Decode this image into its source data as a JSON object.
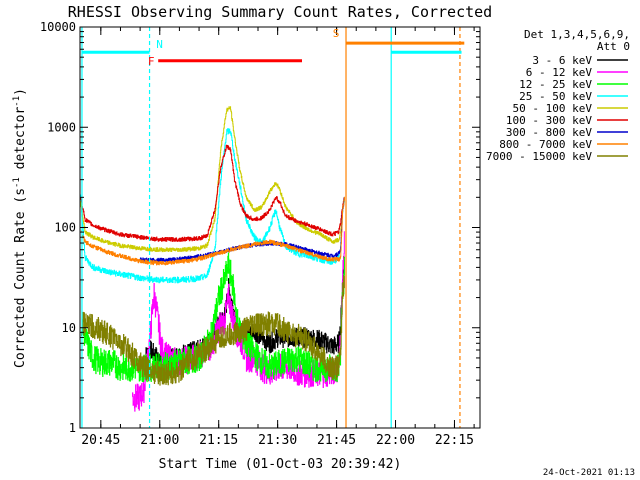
{
  "chart_data": {
    "type": "line",
    "title": "RHESSI Observing Summary Count Rates, Corrected",
    "xlabel": "Start Time (01-Oct-03 20:39:42)",
    "ylabel_main": "Corrected Count Rate (s",
    "ylabel_sup1": "-1",
    "ylabel_mid": " detector",
    "ylabel_sup2": "-1",
    "ylabel_end": ")",
    "yscale": "log",
    "ylim": [
      1,
      10000
    ],
    "xlim_min": [
      39.7,
      141.5
    ],
    "y_ticks": [
      {
        "v": 1,
        "label": "1"
      },
      {
        "v": 10,
        "label": "10"
      },
      {
        "v": 100,
        "label": "100"
      },
      {
        "v": 1000,
        "label": "1000"
      },
      {
        "v": 10000,
        "label": "10000"
      }
    ],
    "x_ticks": [
      {
        "v": 45,
        "label": "20:45"
      },
      {
        "v": 60,
        "label": "21:00"
      },
      {
        "v": 75,
        "label": "21:15"
      },
      {
        "v": 90,
        "label": "21:30"
      },
      {
        "v": 105,
        "label": "21:45"
      },
      {
        "v": 120,
        "label": "22:00"
      },
      {
        "v": 135,
        "label": "22:15"
      }
    ],
    "legend": {
      "header1": "Det 1,3,4,5,6,9,",
      "header2": "Att 0",
      "placement": "right"
    },
    "series": [
      {
        "name": "3 - 6 keV",
        "color": "#000000",
        "points": [
          [
            56,
            5
          ],
          [
            57.5,
            6
          ],
          [
            59.5,
            5
          ],
          [
            62,
            5
          ],
          [
            66,
            5.5
          ],
          [
            70,
            6
          ],
          [
            73,
            7.5
          ],
          [
            75,
            11
          ],
          [
            76.5,
            13
          ],
          [
            77.5,
            25
          ],
          [
            78.5,
            17
          ],
          [
            80,
            9
          ],
          [
            82,
            8.5
          ],
          [
            84,
            9.5
          ],
          [
            86,
            8
          ],
          [
            88,
            7
          ],
          [
            90,
            8
          ],
          [
            94,
            8
          ],
          [
            98,
            8
          ],
          [
            101,
            7.5
          ],
          [
            104,
            6.5
          ],
          [
            105.5,
            7
          ],
          [
            106,
            10
          ],
          [
            106.5,
            28
          ],
          [
            107,
            60
          ]
        ]
      },
      {
        "name": "6 - 12 keV",
        "color": "#ff00ff",
        "points": [
          [
            53,
            2
          ],
          [
            55,
            2
          ],
          [
            56,
            2.5
          ],
          [
            57.5,
            8
          ],
          [
            58.5,
            22
          ],
          [
            59.5,
            12
          ],
          [
            60.5,
            6
          ],
          [
            62,
            5
          ],
          [
            65,
            4.5
          ],
          [
            68,
            5
          ],
          [
            71,
            5.5
          ],
          [
            73,
            6.5
          ],
          [
            75,
            10
          ],
          [
            76.5,
            12
          ],
          [
            77.5,
            20
          ],
          [
            78.5,
            13
          ],
          [
            80,
            8
          ],
          [
            81,
            7
          ],
          [
            82,
            5
          ],
          [
            84,
            5
          ],
          [
            86,
            4
          ],
          [
            88,
            3.5
          ],
          [
            90,
            4
          ],
          [
            93,
            4
          ],
          [
            96,
            3.5
          ],
          [
            100,
            3.5
          ],
          [
            103,
            3.5
          ],
          [
            105.5,
            4
          ],
          [
            106,
            8
          ],
          [
            106.5,
            30
          ],
          [
            107,
            70
          ]
        ]
      },
      {
        "name": "12 - 25 keV",
        "color": "#00ff00",
        "points": [
          [
            40.5,
            10
          ],
          [
            41.5,
            7
          ],
          [
            43,
            5
          ],
          [
            45,
            4.5
          ],
          [
            48,
            4.5
          ],
          [
            50,
            4
          ],
          [
            52,
            4
          ],
          [
            55,
            4
          ],
          [
            60,
            4
          ],
          [
            65,
            4.5
          ],
          [
            70,
            5
          ],
          [
            73,
            8
          ],
          [
            75,
            20
          ],
          [
            76.5,
            30
          ],
          [
            77.5,
            42
          ],
          [
            78.5,
            28
          ],
          [
            80,
            10
          ],
          [
            82,
            7
          ],
          [
            85,
            5
          ],
          [
            88,
            4
          ],
          [
            91,
            4.5
          ],
          [
            95,
            5
          ],
          [
            99,
            4
          ],
          [
            103,
            4
          ],
          [
            105.5,
            4
          ],
          [
            106,
            6
          ],
          [
            106.5,
            20
          ],
          [
            107,
            40
          ]
        ]
      },
      {
        "name": "25 - 50 keV",
        "color": "#00ffff",
        "points": [
          [
            39.8,
            200
          ],
          [
            41,
            50
          ],
          [
            43,
            40
          ],
          [
            47,
            36
          ],
          [
            52,
            33
          ],
          [
            56,
            31
          ],
          [
            60,
            30
          ],
          [
            65,
            30
          ],
          [
            70,
            31
          ],
          [
            72,
            33
          ],
          [
            74,
            60
          ],
          [
            75.5,
            300
          ],
          [
            77,
            900
          ],
          [
            78,
            920
          ],
          [
            79,
            500
          ],
          [
            80.5,
            250
          ],
          [
            82,
            120
          ],
          [
            84,
            80
          ],
          [
            86,
            70
          ],
          [
            88,
            100
          ],
          [
            89.5,
            150
          ],
          [
            90.5,
            100
          ],
          [
            92,
            65
          ],
          [
            95,
            55
          ],
          [
            98,
            52
          ],
          [
            101,
            48
          ],
          [
            104,
            45
          ],
          [
            105.5,
            50
          ],
          [
            106,
            60
          ],
          [
            106.5,
            150
          ],
          [
            107,
            200
          ]
        ]
      },
      {
        "name": "50 - 100 keV",
        "color": "#cccc00",
        "points": [
          [
            39.8,
            180
          ],
          [
            41,
            90
          ],
          [
            43,
            80
          ],
          [
            46,
            72
          ],
          [
            50,
            66
          ],
          [
            55,
            62
          ],
          [
            60,
            60
          ],
          [
            65,
            60
          ],
          [
            70,
            62
          ],
          [
            72,
            66
          ],
          [
            74,
            120
          ],
          [
            75.5,
            600
          ],
          [
            77,
            1500
          ],
          [
            78,
            1550
          ],
          [
            79,
            800
          ],
          [
            80.5,
            350
          ],
          [
            82,
            200
          ],
          [
            84,
            150
          ],
          [
            86,
            160
          ],
          [
            88,
            230
          ],
          [
            89.5,
            280
          ],
          [
            90.5,
            240
          ],
          [
            92,
            160
          ],
          [
            95,
            110
          ],
          [
            98,
            95
          ],
          [
            101,
            85
          ],
          [
            104,
            72
          ],
          [
            105.5,
            75
          ],
          [
            106,
            90
          ],
          [
            106.5,
            150
          ],
          [
            107,
            200
          ]
        ]
      },
      {
        "name": "100 - 300 keV",
        "color": "#e00000",
        "points": [
          [
            39.8,
            200
          ],
          [
            41,
            120
          ],
          [
            43,
            105
          ],
          [
            46,
            95
          ],
          [
            50,
            85
          ],
          [
            55,
            80
          ],
          [
            60,
            76
          ],
          [
            65,
            76
          ],
          [
            70,
            78
          ],
          [
            72,
            82
          ],
          [
            74,
            150
          ],
          [
            75.5,
            400
          ],
          [
            77,
            650
          ],
          [
            78,
            600
          ],
          [
            79,
            300
          ],
          [
            80.5,
            170
          ],
          [
            82,
            130
          ],
          [
            84,
            120
          ],
          [
            86,
            125
          ],
          [
            88,
            150
          ],
          [
            89.5,
            200
          ],
          [
            90.5,
            180
          ],
          [
            92,
            130
          ],
          [
            95,
            115
          ],
          [
            98,
            105
          ],
          [
            101,
            95
          ],
          [
            104,
            85
          ],
          [
            105.5,
            90
          ],
          [
            106,
            110
          ],
          [
            106.5,
            160
          ],
          [
            107,
            200
          ]
        ]
      },
      {
        "name": "300 - 800 keV",
        "color": "#0000cc",
        "points": [
          [
            55,
            48
          ],
          [
            58,
            47
          ],
          [
            60,
            47
          ],
          [
            64,
            48
          ],
          [
            68,
            50
          ],
          [
            72,
            53
          ],
          [
            76,
            58
          ],
          [
            80,
            63
          ],
          [
            84,
            67
          ],
          [
            88,
            70
          ],
          [
            92,
            68
          ],
          [
            96,
            62
          ],
          [
            100,
            56
          ],
          [
            104,
            52
          ],
          [
            105.5,
            55
          ],
          [
            106,
            60
          ],
          [
            106.5,
            150
          ],
          [
            107,
            200
          ]
        ]
      },
      {
        "name": "800 - 7000 keV",
        "color": "#ff8000",
        "points": [
          [
            40,
            90
          ],
          [
            41,
            72
          ],
          [
            43,
            65
          ],
          [
            46,
            58
          ],
          [
            50,
            52
          ],
          [
            55,
            46
          ],
          [
            60,
            44
          ],
          [
            64,
            45
          ],
          [
            68,
            47
          ],
          [
            72,
            51
          ],
          [
            76,
            57
          ],
          [
            80,
            63
          ],
          [
            84,
            68
          ],
          [
            88,
            72
          ],
          [
            92,
            66
          ],
          [
            96,
            58
          ],
          [
            100,
            52
          ],
          [
            103,
            48
          ],
          [
            105.5,
            48
          ],
          [
            106,
            50
          ],
          [
            106.5,
            150
          ],
          [
            107,
            200
          ]
        ]
      },
      {
        "name": "7000 - 15000 keV",
        "color": "#808000",
        "points": [
          [
            40,
            11
          ],
          [
            44,
            10
          ],
          [
            48,
            8
          ],
          [
            52,
            6
          ],
          [
            56,
            4
          ],
          [
            60,
            3.5
          ],
          [
            64,
            3.5
          ],
          [
            67,
            4.5
          ],
          [
            70,
            5.5
          ],
          [
            73,
            6.5
          ],
          [
            76,
            8
          ],
          [
            80,
            9
          ],
          [
            84,
            10.5
          ],
          [
            87,
            11
          ],
          [
            90,
            10.5
          ],
          [
            93,
            9
          ],
          [
            96,
            8
          ],
          [
            100,
            6
          ],
          [
            103,
            4
          ],
          [
            105.5,
            4
          ],
          [
            106,
            6
          ],
          [
            106.5,
            20
          ],
          [
            107,
            35
          ]
        ]
      }
    ],
    "annotations": {
      "N": {
        "label": "N",
        "color": "#00ffff",
        "start_min": 57.4,
        "level": 5600
      },
      "F": {
        "label": "F",
        "color": "#ff0000",
        "start_min": 59.6,
        "end_min": 96.2,
        "level": 4600
      },
      "S": {
        "label": "S",
        "color": "#ff8000",
        "start_min": 107.4,
        "level": 6900
      },
      "cyan_solid_x": [
        40.2,
        118.9
      ],
      "cyan_dashed_x": [
        57.4
      ],
      "orange_solid_x": [
        107.4
      ],
      "orange_dashed_x": [
        136.4
      ],
      "cyan_levels": [
        {
          "x1": 40.2,
          "x2": 57.4,
          "v": 5600
        },
        {
          "x1": 118.9,
          "x2": 136.8,
          "v": 5600
        }
      ],
      "orange_levels": [
        {
          "x1": 107.4,
          "x2": 137.5,
          "v": 6900
        }
      ]
    }
  },
  "footer": {
    "timestamp": "24-Oct-2021 01:13"
  }
}
